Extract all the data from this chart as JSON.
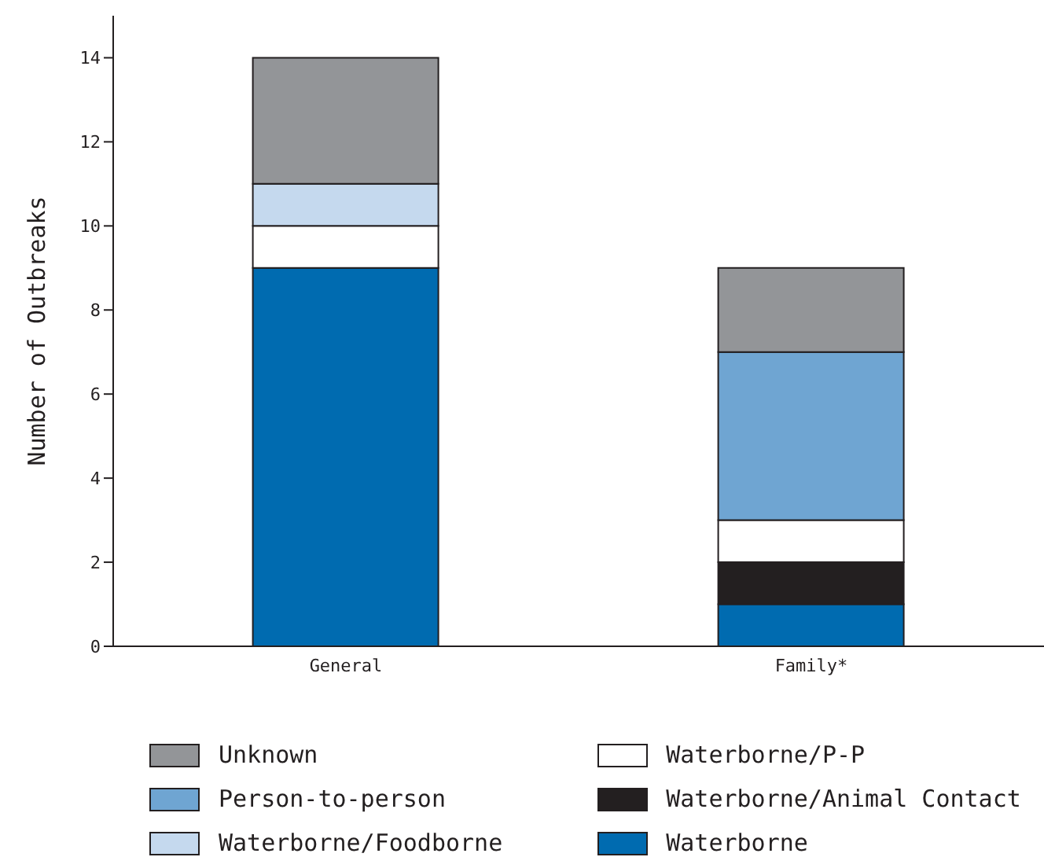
{
  "chart_data": {
    "type": "bar",
    "stacked": true,
    "ylabel": "Number of Outbreaks",
    "categories": [
      "General",
      "Family*"
    ],
    "series": [
      {
        "name": "Waterborne",
        "color": "#006bb0",
        "values": [
          9,
          1
        ]
      },
      {
        "name": "Waterborne/Animal Contact",
        "color": "#231f20",
        "values": [
          null,
          1
        ]
      },
      {
        "name": "Waterborne/P-P",
        "color": "#ffffff",
        "values": [
          1,
          1
        ]
      },
      {
        "name": "Waterborne/Foodborne",
        "color": "#c5d9ee",
        "values": [
          1,
          null
        ]
      },
      {
        "name": "Person-to-person",
        "color": "#6fa5d2",
        "values": [
          null,
          4
        ]
      },
      {
        "name": "Unknown",
        "color": "#939598",
        "values": [
          3,
          2
        ]
      }
    ],
    "ylim": [
      0,
      15
    ],
    "yticks": [
      0,
      2,
      4,
      6,
      8,
      10,
      12,
      14
    ],
    "grid": false,
    "legend": "bottom"
  }
}
